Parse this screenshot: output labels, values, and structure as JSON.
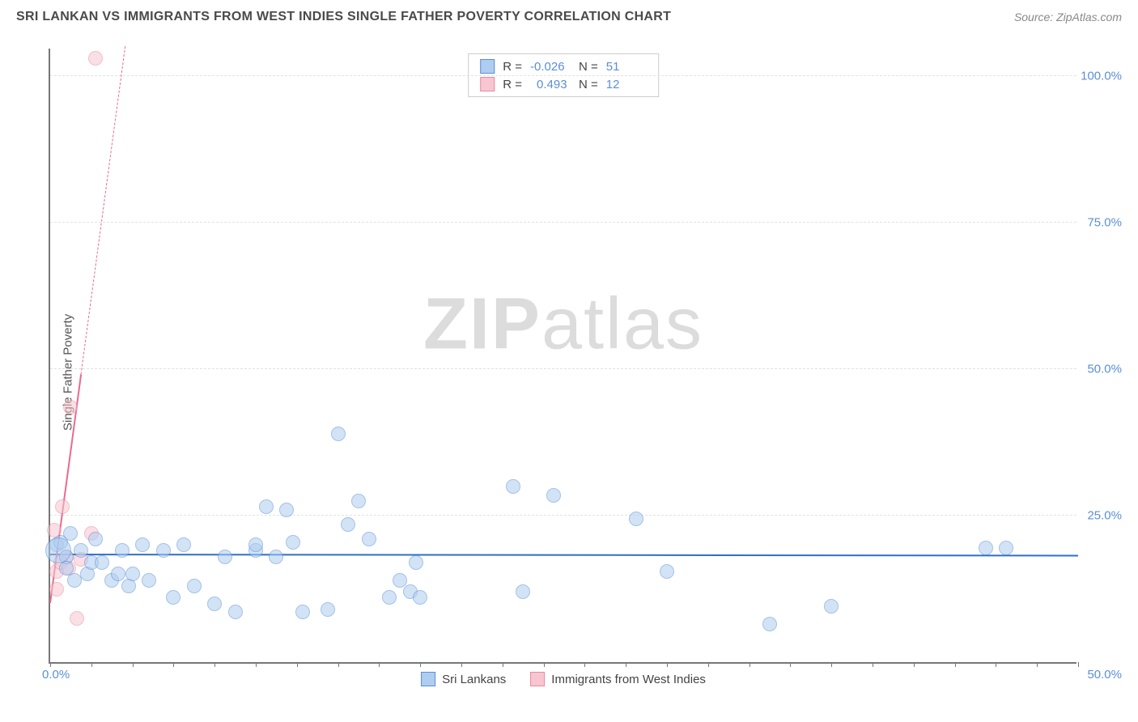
{
  "title": "SRI LANKAN VS IMMIGRANTS FROM WEST INDIES SINGLE FATHER POVERTY CORRELATION CHART",
  "source": "Source: ZipAtlas.com",
  "y_axis_label": "Single Father Poverty",
  "watermark_bold": "ZIP",
  "watermark_light": "atlas",
  "chart": {
    "type": "scatter",
    "background_color": "#ffffff",
    "grid_color": "#e2e2e2",
    "axis_color": "#777777",
    "x_range": [
      0,
      50
    ],
    "y_range": [
      0,
      105
    ],
    "x_ticks": [
      0,
      2,
      4,
      6,
      8,
      10,
      12,
      14,
      16,
      18,
      20,
      22,
      24,
      26,
      28,
      30,
      32,
      34,
      36,
      38,
      40,
      42,
      44,
      46,
      48,
      50
    ],
    "y_grid": [
      25,
      50,
      75,
      100
    ],
    "y_tick_labels": [
      "25.0%",
      "50.0%",
      "75.0%",
      "100.0%"
    ],
    "origin_label": "0.0%",
    "x_max_label": "50.0%",
    "marker_radius": 9,
    "marker_stroke_width": 1.2,
    "series": {
      "sri_lankans": {
        "label": "Sri Lankans",
        "fill": "#aecdf0",
        "stroke": "#5b8fd6",
        "fill_opacity": 0.55,
        "trend": {
          "slope": -0.004,
          "intercept": 18.2,
          "color": "#2f6fc9",
          "width": 2.5,
          "x0": 0,
          "x1": 50
        },
        "stats": {
          "R": "-0.026",
          "N": "51"
        },
        "points": [
          [
            0.3,
            20
          ],
          [
            0.8,
            18
          ],
          [
            0.8,
            16
          ],
          [
            0.5,
            20.5
          ],
          [
            1.0,
            22
          ],
          [
            1.2,
            14
          ],
          [
            1.5,
            19
          ],
          [
            1.8,
            15
          ],
          [
            2.0,
            17
          ],
          [
            2.2,
            21
          ],
          [
            2.5,
            17
          ],
          [
            3.0,
            14
          ],
          [
            3.3,
            15
          ],
          [
            3.5,
            19
          ],
          [
            3.8,
            13
          ],
          [
            4.0,
            15
          ],
          [
            4.5,
            20
          ],
          [
            4.8,
            14
          ],
          [
            5.5,
            19
          ],
          [
            6.0,
            11
          ],
          [
            6.5,
            20
          ],
          [
            7.0,
            13
          ],
          [
            8.0,
            10
          ],
          [
            8.5,
            18
          ],
          [
            9.0,
            8.5
          ],
          [
            10.0,
            19
          ],
          [
            10.0,
            20
          ],
          [
            10.5,
            26.5
          ],
          [
            11.5,
            26
          ],
          [
            11.0,
            18
          ],
          [
            11.8,
            20.5
          ],
          [
            12.3,
            8.5
          ],
          [
            13.5,
            9
          ],
          [
            14.0,
            39
          ],
          [
            14.5,
            23.5
          ],
          [
            15.0,
            27.5
          ],
          [
            15.5,
            21
          ],
          [
            16.5,
            11
          ],
          [
            17.0,
            14
          ],
          [
            17.5,
            12
          ],
          [
            17.8,
            17
          ],
          [
            18.0,
            11
          ],
          [
            22.5,
            30
          ],
          [
            23.0,
            12
          ],
          [
            24.5,
            28.5
          ],
          [
            28.5,
            24.5
          ],
          [
            30.0,
            15.5
          ],
          [
            35.0,
            6.5
          ],
          [
            38.0,
            9.5
          ],
          [
            45.5,
            19.5
          ],
          [
            46.5,
            19.5
          ]
        ]
      },
      "west_indies": {
        "label": "Immigrants from West Indies",
        "fill": "#f7c6d0",
        "stroke": "#e88ba3",
        "fill_opacity": 0.55,
        "trend": {
          "slope": 26,
          "intercept": 10,
          "color": "#e86b8f",
          "width": 2.2,
          "x0": 0,
          "x1_solid": 1.5,
          "x1_dash": 4.0
        },
        "stats": {
          "R": "0.493",
          "N": "12"
        },
        "points": [
          [
            0.2,
            22.5
          ],
          [
            0.3,
            12.5
          ],
          [
            0.3,
            15.5
          ],
          [
            0.5,
            17
          ],
          [
            0.6,
            26.5
          ],
          [
            0.8,
            18
          ],
          [
            0.9,
            16
          ],
          [
            1.0,
            43.5
          ],
          [
            1.3,
            7.5
          ],
          [
            1.5,
            17.5
          ],
          [
            2.0,
            22
          ],
          [
            2.2,
            103
          ]
        ]
      }
    },
    "big_markers": [
      {
        "x": 0.4,
        "y": 19,
        "r": 16,
        "series": "sri_lankans"
      }
    ]
  },
  "legend_top": {
    "R_label": "R =",
    "N_label": "N ="
  }
}
